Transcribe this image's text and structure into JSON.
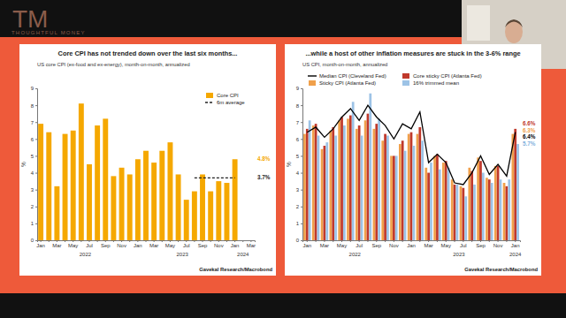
{
  "logo": {
    "monogram": "TM",
    "text": "THOUGHTFUL MONEY"
  },
  "chart_data": [
    {
      "type": "bar",
      "title": "Core CPI has not trended down over the last six months...",
      "subtitle": "US core CPI (ex-food and ex-energy), month-on-month, annualized",
      "ylabel": "%",
      "source": "Gavekal Research/Macrobond",
      "categories": [
        "Jan",
        null,
        "Mar",
        null,
        "May",
        null,
        "Jul",
        null,
        "Sep",
        null,
        "Nov",
        null,
        "Jan",
        null,
        "Mar",
        null,
        "May",
        null,
        "Jul",
        null,
        "Sep",
        null,
        "Nov",
        null,
        "Jan",
        null,
        "Mar"
      ],
      "groups": [
        "2022",
        null,
        null,
        null,
        null,
        null,
        null,
        null,
        null,
        null,
        null,
        null,
        "2023",
        null,
        null,
        null,
        null,
        null,
        null,
        null,
        null,
        null,
        null,
        null,
        "2024",
        null,
        null
      ],
      "series": [
        {
          "name": "Core CPI",
          "type": "bar",
          "color": "#f5a800",
          "values": [
            6.9,
            6.4,
            3.2,
            6.3,
            6.5,
            8.1,
            4.5,
            6.8,
            7.2,
            3.8,
            4.3,
            3.9,
            4.8,
            5.3,
            4.6,
            5.3,
            5.8,
            3.9,
            2.4,
            2.9,
            3.9,
            2.9,
            3.5,
            3.4,
            4.8,
            null,
            null
          ]
        },
        {
          "name": "6m average",
          "type": "line",
          "color": "#222222",
          "line_style": "dashed",
          "values": [
            null,
            null,
            null,
            null,
            null,
            null,
            null,
            null,
            null,
            null,
            null,
            null,
            null,
            null,
            null,
            null,
            null,
            null,
            null,
            3.7,
            3.7,
            3.7,
            3.7,
            3.7,
            3.7,
            null,
            null
          ]
        }
      ],
      "ylim": [
        0,
        9
      ],
      "yticks": [
        0,
        1,
        2,
        3,
        4,
        5,
        6,
        7,
        8,
        9
      ],
      "grid": false,
      "legend": "upper right",
      "annotations": [
        {
          "text": "4.8%",
          "y": 4.8,
          "color": "#f5a800"
        },
        {
          "text": "3.7%",
          "y": 3.7,
          "color": "#222222"
        }
      ]
    },
    {
      "type": "bar",
      "title": "...while a host of other inflation measures are stuck in the 3-6% range",
      "subtitle": "US CPI, month-on-month, annualized",
      "ylabel": "%",
      "source": "Gavekal Research/Macrobond",
      "categories": [
        "Jan",
        null,
        "Mar",
        null,
        "May",
        null,
        "Jul",
        null,
        "Sep",
        null,
        "Nov",
        null,
        "Jan",
        null,
        "Mar",
        null,
        "May",
        null,
        "Jul",
        null,
        "Sep",
        null,
        "Nov",
        null,
        "Jan"
      ],
      "groups": [
        "2022",
        null,
        null,
        null,
        null,
        null,
        null,
        null,
        null,
        null,
        null,
        null,
        "2023",
        null,
        null,
        null,
        null,
        null,
        null,
        null,
        null,
        null,
        null,
        null,
        "2024"
      ],
      "series": [
        {
          "name": "Median CPI (Cleveland Fed)",
          "type": "line",
          "color": "#000000",
          "values": [
            6.4,
            6.7,
            6.1,
            6.6,
            7.3,
            7.8,
            7.1,
            8.0,
            7.3,
            6.8,
            6.0,
            6.9,
            6.6,
            7.6,
            4.6,
            5.1,
            4.6,
            3.4,
            3.3,
            4.0,
            5.0,
            3.9,
            4.5,
            3.8,
            6.4
          ]
        },
        {
          "name": "Sticky CPI (Atlanta Fed)",
          "type": "bar",
          "color": "#f0a04b",
          "values": [
            6.3,
            6.8,
            5.4,
            6.5,
            7.1,
            7.2,
            6.6,
            7.1,
            6.6,
            5.9,
            5.0,
            5.7,
            6.3,
            6.3,
            4.3,
            5.0,
            4.6,
            3.6,
            3.2,
            4.3,
            4.9,
            3.7,
            4.4,
            3.4,
            6.3
          ]
        },
        {
          "name": "Core sticky CPI (Atlanta Fed)",
          "type": "bar",
          "color": "#c0392b",
          "values": [
            6.6,
            6.9,
            5.6,
            6.7,
            7.3,
            7.4,
            6.8,
            7.5,
            6.9,
            6.3,
            5.0,
            5.9,
            6.4,
            6.7,
            4.0,
            5.1,
            4.7,
            3.3,
            3.1,
            4.1,
            4.7,
            3.6,
            4.4,
            3.2,
            6.6
          ]
        },
        {
          "name": "16% trimmed mean",
          "type": "bar",
          "color": "#9dc3e6",
          "values": [
            7.1,
            6.2,
            5.8,
            6.2,
            6.8,
            8.2,
            6.2,
            8.7,
            7.2,
            6.2,
            5.0,
            5.3,
            5.6,
            5.9,
            4.6,
            4.2,
            4.3,
            3.3,
            2.6,
            3.3,
            4.0,
            3.4,
            3.6,
            3.6,
            5.7
          ]
        }
      ],
      "ylim": [
        0,
        9
      ],
      "yticks": [
        0,
        1,
        2,
        3,
        4,
        5,
        6,
        7,
        8,
        9
      ],
      "grid": false,
      "legend": "upper left",
      "annotations": [
        {
          "text": "6.6%",
          "color": "#c0392b"
        },
        {
          "text": "6.3%",
          "color": "#f0a04b"
        },
        {
          "text": "6.4%",
          "color": "#000000"
        },
        {
          "text": "5.7%",
          "color": "#7fb0dc"
        }
      ]
    }
  ]
}
